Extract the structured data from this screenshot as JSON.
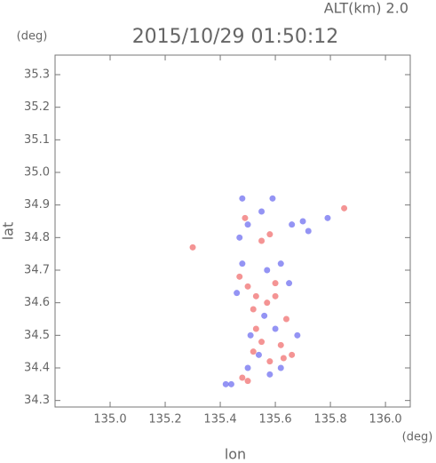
{
  "chart_data": {
    "type": "scatter",
    "title": "2015/10/29 01:50:12",
    "subtitle": "ALT(km) 2.0",
    "x_label": "lon",
    "x_unit": "(deg)",
    "y_label": "lat",
    "y_unit": "(deg)",
    "xlim": [
      134.8,
      136.09
    ],
    "ylim": [
      34.28,
      35.36
    ],
    "xticks": [
      {
        "value": 135.0,
        "label": "135.0"
      },
      135.2,
      135.4,
      135.6,
      135.8,
      {
        "value": 136.0,
        "label": "136.0"
      }
    ],
    "yticks": [
      34.3,
      34.4,
      34.5,
      34.6,
      34.7,
      34.8,
      34.9,
      {
        "value": 35.0,
        "label": "35.0"
      },
      35.1,
      35.2,
      35.3
    ],
    "series": [
      {
        "color": "#f07070",
        "x": [
          135.3,
          135.49,
          135.55,
          135.58,
          135.5,
          135.53,
          135.57,
          135.52,
          135.6,
          135.55,
          135.62,
          135.58,
          135.63,
          135.66,
          135.48,
          135.5,
          135.53,
          135.64,
          135.47,
          135.85,
          135.6,
          135.52
        ],
        "y": [
          34.77,
          34.86,
          34.79,
          34.81,
          34.65,
          34.62,
          34.6,
          34.58,
          34.66,
          34.48,
          34.47,
          34.42,
          34.43,
          34.44,
          34.37,
          34.36,
          34.52,
          34.55,
          34.68,
          34.89,
          34.62,
          34.45
        ]
      },
      {
        "color": "#7070f0",
        "x": [
          135.48,
          135.59,
          135.5,
          135.47,
          135.66,
          135.7,
          135.72,
          135.62,
          135.57,
          135.46,
          135.56,
          135.6,
          135.51,
          135.54,
          135.5,
          135.44,
          135.58,
          135.62,
          135.48,
          135.65,
          135.68,
          135.42,
          135.79,
          135.55
        ],
        "y": [
          34.92,
          34.92,
          34.84,
          34.8,
          34.84,
          34.85,
          34.82,
          34.72,
          34.7,
          34.63,
          34.56,
          34.52,
          34.5,
          34.44,
          34.4,
          34.35,
          34.38,
          34.4,
          34.72,
          34.66,
          34.5,
          34.35,
          34.86,
          34.88
        ]
      }
    ]
  }
}
